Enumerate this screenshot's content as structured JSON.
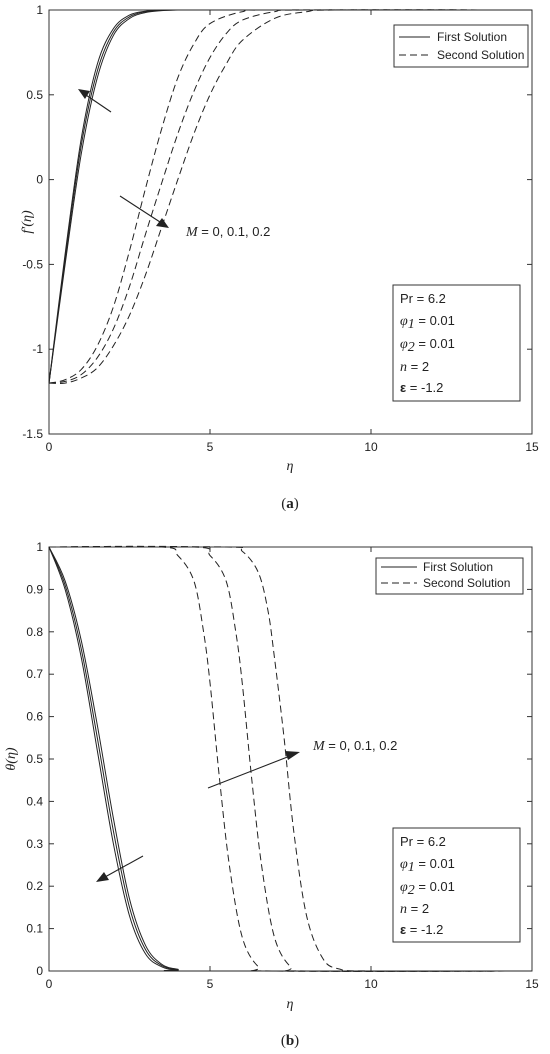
{
  "legend": {
    "first": "First Solution",
    "second": "Second Solution"
  },
  "params": {
    "pr": "Pr = 6.2",
    "phi1_sym": "φ",
    "phi1_sub": "1",
    "phi1_val": " = 0.01",
    "phi2_sym": "φ",
    "phi2_sub": "2",
    "phi2_val": " = 0.01",
    "n_sym": "n",
    "n_val": " = 2",
    "eps_sym": "ε",
    "eps_val": " = -1.2"
  },
  "annotation": {
    "sym": "M",
    "val": " = 0, 0.1, 0.2"
  },
  "chart_data": [
    {
      "type": "line",
      "caption_open": "(",
      "caption_letter": "a",
      "caption_close": ")",
      "xlabel": "η",
      "ylabel_main": "f",
      "ylabel_prime": "′",
      "ylabel_arg": "(η)",
      "xlim": [
        0,
        15
      ],
      "ylim": [
        -1.5,
        1
      ],
      "xticks": [
        0,
        5,
        10,
        15
      ],
      "xtick_labels": [
        "0",
        "5",
        "10",
        "15"
      ],
      "yticks": [
        -1.5,
        -1,
        -0.5,
        0,
        0.5,
        1
      ],
      "ytick_labels": [
        "-1.5",
        "-1",
        "-0.5",
        "0",
        "0.5",
        "1"
      ],
      "grid": false,
      "legend_position": "top-right",
      "series": [
        {
          "name": "First Solution",
          "style": "solid",
          "M": 0,
          "x": [
            0,
            0.5,
            1,
            1.5,
            2,
            2.5,
            3,
            3.5,
            4,
            5,
            15
          ],
          "y": [
            -1.2,
            -0.5,
            0.15,
            0.6,
            0.85,
            0.95,
            0.985,
            0.996,
            1,
            1,
            1
          ]
        },
        {
          "name": "First Solution",
          "style": "solid",
          "M": 0.1,
          "x": [
            0,
            0.5,
            1,
            1.5,
            2,
            2.5,
            3,
            3.5,
            4,
            5,
            15
          ],
          "y": [
            -1.2,
            -0.47,
            0.2,
            0.64,
            0.87,
            0.96,
            0.99,
            0.998,
            1,
            1,
            1
          ]
        },
        {
          "name": "First Solution",
          "style": "solid",
          "M": 0.2,
          "x": [
            0,
            0.5,
            1,
            1.5,
            2,
            2.5,
            3,
            3.5,
            4,
            5,
            15
          ],
          "y": [
            -1.2,
            -0.44,
            0.24,
            0.68,
            0.89,
            0.97,
            0.993,
            0.999,
            1,
            1,
            1
          ]
        },
        {
          "name": "Second Solution",
          "style": "dashed",
          "M": 0,
          "x": [
            0,
            0.5,
            1,
            1.5,
            2,
            2.5,
            3,
            3.5,
            4,
            4.5,
            5,
            6,
            7,
            15
          ],
          "y": [
            -1.2,
            -1.18,
            -1.12,
            -0.98,
            -0.75,
            -0.42,
            -0.05,
            0.3,
            0.6,
            0.8,
            0.92,
            0.99,
            1,
            1
          ]
        },
        {
          "name": "Second Solution",
          "style": "dashed",
          "M": 0.1,
          "x": [
            0,
            0.5,
            1,
            1.5,
            2,
            2.5,
            3,
            3.5,
            4,
            4.5,
            5,
            5.5,
            6,
            7,
            8,
            15
          ],
          "y": [
            -1.2,
            -1.19,
            -1.15,
            -1.05,
            -0.88,
            -0.63,
            -0.32,
            -0.02,
            0.27,
            0.52,
            0.72,
            0.86,
            0.94,
            0.99,
            1,
            1
          ]
        },
        {
          "name": "Second Solution",
          "style": "dashed",
          "M": 0.2,
          "x": [
            0,
            0.5,
            1,
            1.5,
            2,
            2.5,
            3,
            3.5,
            4,
            4.5,
            5,
            5.5,
            6,
            7,
            8,
            9,
            15
          ],
          "y": [
            -1.2,
            -1.2,
            -1.17,
            -1.11,
            -0.98,
            -0.8,
            -0.56,
            -0.28,
            0.0,
            0.27,
            0.5,
            0.68,
            0.82,
            0.95,
            0.99,
            1,
            1
          ]
        }
      ]
    },
    {
      "type": "line",
      "caption_open": "(",
      "caption_letter": "b",
      "caption_close": ")",
      "xlabel": "η",
      "ylabel_main": "θ",
      "ylabel_prime": "",
      "ylabel_arg": "(η)",
      "xlim": [
        0,
        15
      ],
      "ylim": [
        0,
        1
      ],
      "xticks": [
        0,
        5,
        10,
        15
      ],
      "xtick_labels": [
        "0",
        "5",
        "10",
        "15"
      ],
      "yticks": [
        0,
        0.1,
        0.2,
        0.3,
        0.4,
        0.5,
        0.6,
        0.7,
        0.8,
        0.9,
        1
      ],
      "ytick_labels": [
        "0",
        "0.1",
        "0.2",
        "0.3",
        "0.4",
        "0.5",
        "0.6",
        "0.7",
        "0.8",
        "0.9",
        "1"
      ],
      "grid": false,
      "legend_position": "top-right",
      "series": [
        {
          "name": "First Solution",
          "style": "solid",
          "M": 0,
          "x": [
            0,
            0.5,
            1,
            1.5,
            2,
            2.5,
            3,
            3.5,
            4,
            4.5,
            15
          ],
          "y": [
            1,
            0.9,
            0.74,
            0.52,
            0.3,
            0.13,
            0.04,
            0.01,
            0.002,
            0,
            0
          ]
        },
        {
          "name": "First Solution",
          "style": "solid",
          "M": 0.1,
          "x": [
            0,
            0.5,
            1,
            1.5,
            2,
            2.5,
            3,
            3.5,
            4,
            4.5,
            15
          ],
          "y": [
            1,
            0.91,
            0.76,
            0.55,
            0.33,
            0.15,
            0.05,
            0.013,
            0.003,
            0,
            0
          ]
        },
        {
          "name": "First Solution",
          "style": "solid",
          "M": 0.2,
          "x": [
            0,
            0.5,
            1,
            1.5,
            2,
            2.5,
            3,
            3.5,
            4,
            4.5,
            15
          ],
          "y": [
            1,
            0.92,
            0.78,
            0.58,
            0.36,
            0.17,
            0.06,
            0.016,
            0.004,
            0,
            0
          ]
        },
        {
          "name": "Second Solution",
          "style": "dashed",
          "M": 0,
          "x": [
            0,
            3.5,
            4,
            4.5,
            4.8,
            5,
            5.3,
            5.6,
            6,
            6.5,
            7,
            15
          ],
          "y": [
            1,
            1,
            0.98,
            0.92,
            0.8,
            0.68,
            0.45,
            0.25,
            0.08,
            0.01,
            0,
            0
          ]
        },
        {
          "name": "Second Solution",
          "style": "dashed",
          "M": 0.1,
          "x": [
            0,
            4.5,
            5,
            5.5,
            5.8,
            6,
            6.3,
            6.6,
            7,
            7.5,
            8,
            15
          ],
          "y": [
            1,
            1,
            0.98,
            0.92,
            0.8,
            0.68,
            0.45,
            0.25,
            0.08,
            0.01,
            0,
            0
          ]
        },
        {
          "name": "Second Solution",
          "style": "dashed",
          "M": 0.2,
          "x": [
            0,
            5.5,
            6,
            6.5,
            6.8,
            7,
            7.3,
            7.6,
            8,
            8.5,
            9,
            10,
            15
          ],
          "y": [
            1,
            1,
            0.99,
            0.94,
            0.85,
            0.74,
            0.55,
            0.33,
            0.13,
            0.03,
            0.005,
            0,
            0
          ]
        }
      ]
    }
  ]
}
